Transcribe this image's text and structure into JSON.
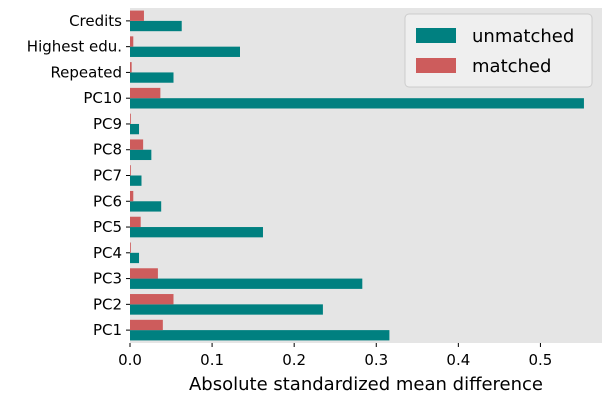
{
  "chart_data": {
    "type": "bar",
    "orientation": "horizontal",
    "categories": [
      "PC1",
      "PC2",
      "PC3",
      "PC4",
      "PC5",
      "PC6",
      "PC7",
      "PC8",
      "PC9",
      "PC10",
      "Repeated",
      "Highest edu.",
      "Credits"
    ],
    "series": [
      {
        "name": "unmatched",
        "color": "#008080",
        "values": [
          0.316,
          0.235,
          0.283,
          0.011,
          0.162,
          0.038,
          0.014,
          0.026,
          0.011,
          0.553,
          0.053,
          0.134,
          0.063
        ]
      },
      {
        "name": "matched",
        "color": "#cd5c5c",
        "values": [
          0.04,
          0.053,
          0.034,
          0.001,
          0.013,
          0.004,
          0.001,
          0.016,
          0.001,
          0.037,
          0.002,
          0.004,
          0.017
        ]
      }
    ],
    "xlabel": "Absolute standardized mean difference",
    "ylabel": "",
    "xlim": [
      0,
      0.575
    ],
    "xticks": [
      "0.0",
      "0.1",
      "0.2",
      "0.3",
      "0.4",
      "0.5"
    ],
    "xtick_values": [
      0,
      0.1,
      0.2,
      0.3,
      0.4,
      0.5
    ],
    "grid": false,
    "background": "#e5e5e5",
    "legend_position": "top-right"
  }
}
